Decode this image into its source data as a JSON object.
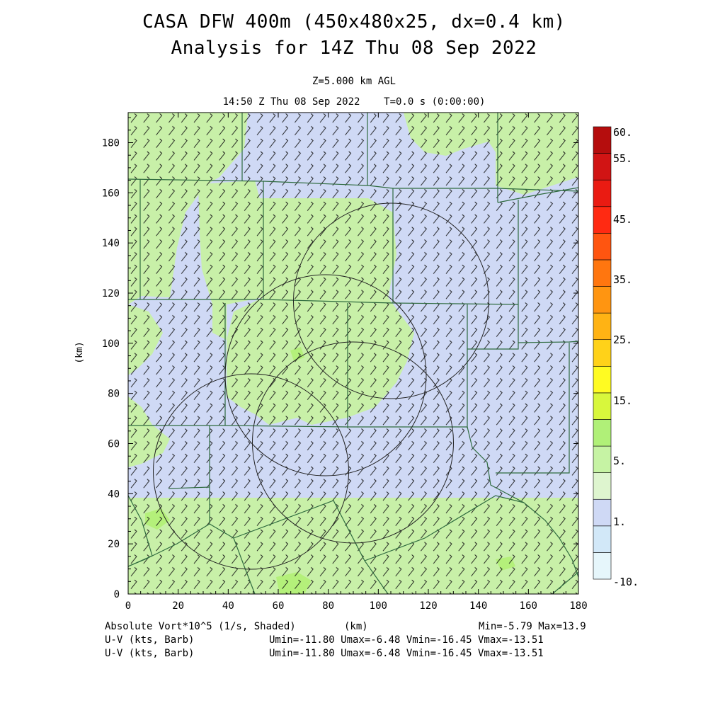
{
  "header": {
    "title_line1": "CASA DFW 400m (450x480x25, dx=0.4 km)",
    "title_line2": "Analysis for 14Z Thu 08 Sep 2022",
    "level": "Z=5.000 km AGL",
    "valid_time": "14:50 Z Thu 08 Sep 2022    T=0.0 s (0:00:00)"
  },
  "axes": {
    "x_unit_label": "(km)",
    "y_unit_label": "(km)",
    "x_range": [
      0,
      180
    ],
    "y_range": [
      0,
      192
    ],
    "x_ticks": [
      "0",
      "20",
      "40",
      "60",
      "80",
      "100",
      "120",
      "140",
      "160",
      "180"
    ],
    "y_ticks": [
      "0",
      "20",
      "40",
      "60",
      "80",
      "100",
      "120",
      "140",
      "160",
      "180"
    ]
  },
  "colorbar": {
    "labels": [
      "60.",
      "55.",
      "45.",
      "35.",
      "25.",
      "15.",
      "5.",
      "1.",
      "-10."
    ],
    "colors": [
      "#e6f6fb",
      "#d2e8f8",
      "#cfd9f5",
      "#def5cf",
      "#c6f3a4",
      "#b0f078",
      "#d8f73c",
      "#fffb22",
      "#ffd219",
      "#ffb314",
      "#ff9511",
      "#ff760f",
      "#ff5510",
      "#ff2a12",
      "#ea1b12",
      "#d11414",
      "#b50d0d"
    ]
  },
  "field_colors": {
    "light_green": "#c8f0a8",
    "lavender": "#cfd9f5",
    "yellow_green": "#b4f07a",
    "county_lines": "#2f6b3f",
    "barbs": "#111111"
  },
  "radar_rings": [
    {
      "cx_km": 78.5,
      "cy_km": 118,
      "r_km": 39
    },
    {
      "cx_km": 49,
      "cy_km": 50,
      "r_km": 39
    },
    {
      "cx_km": 75,
      "cy_km": 86,
      "r_km": 39
    },
    {
      "cx_km": 86,
      "cy_km": 60,
      "r_km": 40
    }
  ],
  "footer": {
    "line1_left": "Absolute Vort*10^5 (1/s, Shaded)",
    "line1_mid": "(km)",
    "line1_right": "Min=-5.79 Max=13.9",
    "line2_left": "U-V (kts, Barb)",
    "line2_right": "Umin=-11.80 Umax=-6.48 Vmin=-16.45 Vmax=-13.51",
    "line3_left": "U-V (kts, Barb)",
    "line3_right": "Umin=-11.80 Umax=-6.48 Vmin=-16.45 Vmax=-13.51"
  }
}
